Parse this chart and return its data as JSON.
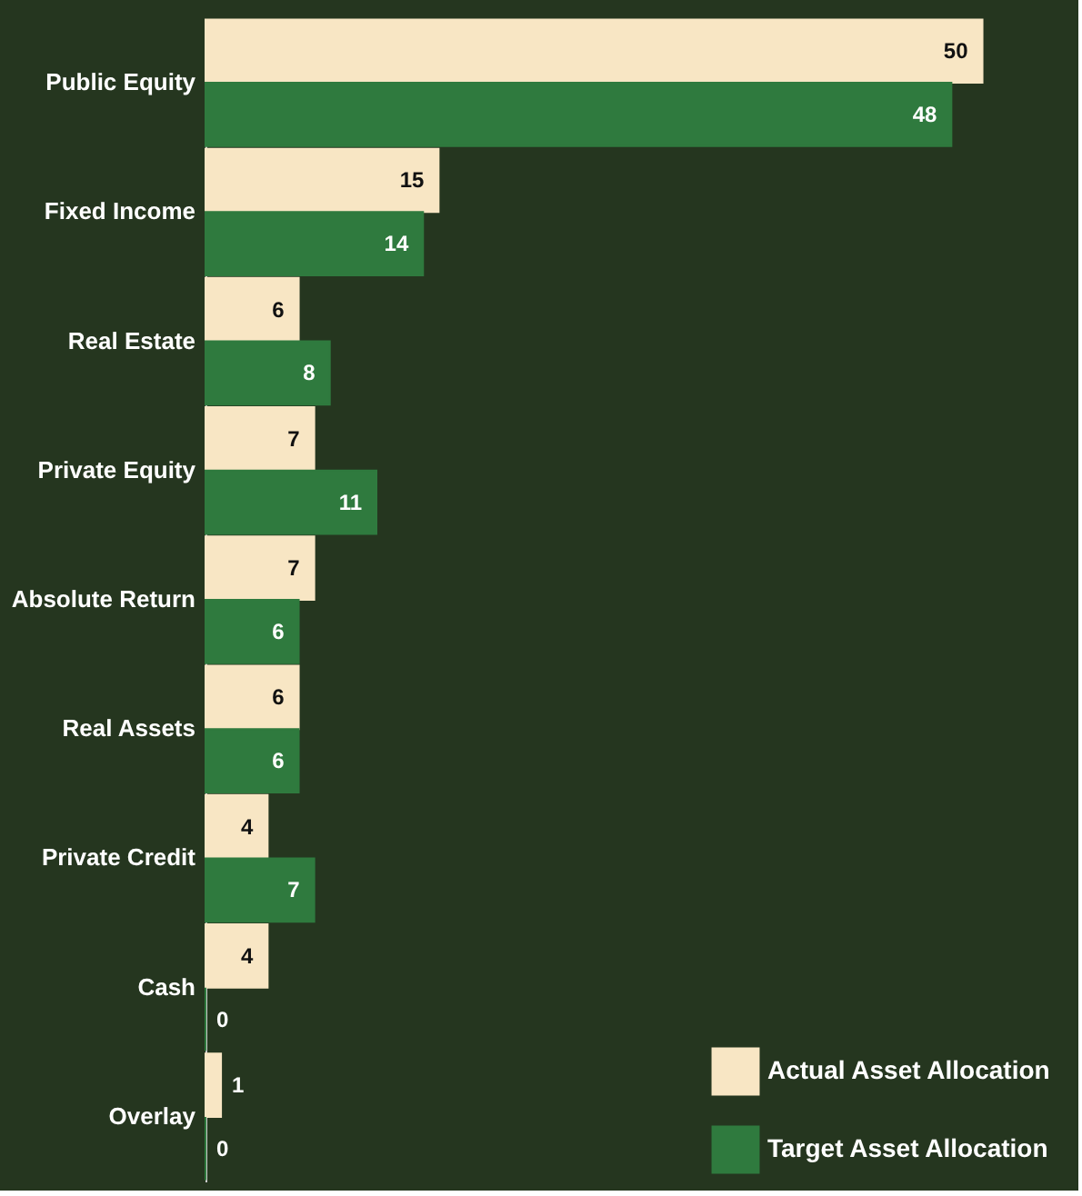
{
  "chart_data": {
    "type": "bar",
    "orientation": "horizontal",
    "categories": [
      "Public Equity",
      "Fixed Income",
      "Real Estate",
      "Private Equity",
      "Absolute Return",
      "Real Assets",
      "Private Credit",
      "Cash",
      "Overlay"
    ],
    "series": [
      {
        "name": "Actual Asset Allocation",
        "color": "#f8e6c4",
        "values": [
          50,
          15,
          6,
          7,
          7,
          6,
          4,
          4,
          1
        ]
      },
      {
        "name": "Target Asset Allocation",
        "color": "#2f7a3e",
        "values": [
          48,
          14,
          8,
          11,
          6,
          6,
          7,
          0,
          0
        ]
      }
    ],
    "data_labels": true,
    "legend": "bottom right",
    "grid": false
  }
}
